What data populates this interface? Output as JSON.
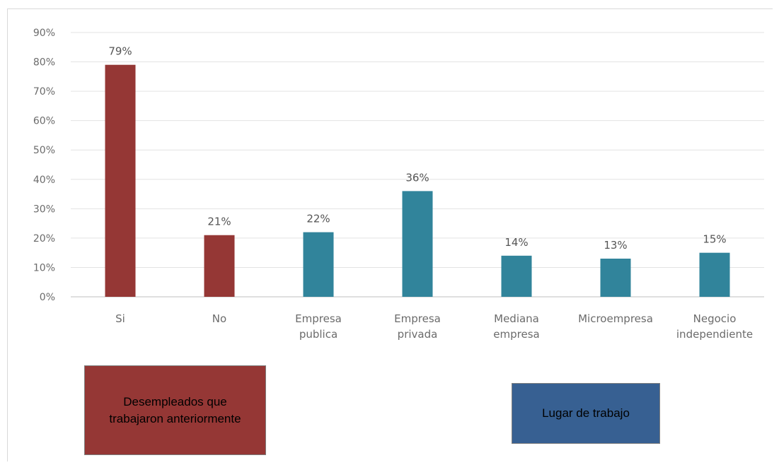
{
  "chart_data": {
    "type": "bar",
    "y_ticks": [
      "0%",
      "10%",
      "20%",
      "30%",
      "40%",
      "50%",
      "60%",
      "70%",
      "80%",
      "90%"
    ],
    "ylim": [
      0,
      90
    ],
    "grid": true,
    "categories": [
      {
        "label": [
          "Si"
        ],
        "value": 79,
        "value_label": "79%",
        "group": "desempleados"
      },
      {
        "label": [
          "No"
        ],
        "value": 21,
        "value_label": "21%",
        "group": "desempleados"
      },
      {
        "label": [
          "Empresa",
          "publica"
        ],
        "value": 22,
        "value_label": "22%",
        "group": "lugar"
      },
      {
        "label": [
          "Empresa",
          "privada"
        ],
        "value": 36,
        "value_label": "36%",
        "group": "lugar"
      },
      {
        "label": [
          "Mediana",
          "empresa"
        ],
        "value": 14,
        "value_label": "14%",
        "group": "lugar"
      },
      {
        "label": [
          "Microempresa"
        ],
        "value": 13,
        "value_label": "13%",
        "group": "lugar"
      },
      {
        "label": [
          "Negocio",
          "independiente"
        ],
        "value": 15,
        "value_label": "15%",
        "group": "lugar"
      }
    ],
    "groups": {
      "desempleados": {
        "label": "Desempleados que trabajaron anteriormente",
        "color": "#953735"
      },
      "lugar": {
        "label": "Lugar de trabajo",
        "color": "#31849b",
        "box_color": "#376092"
      }
    }
  }
}
